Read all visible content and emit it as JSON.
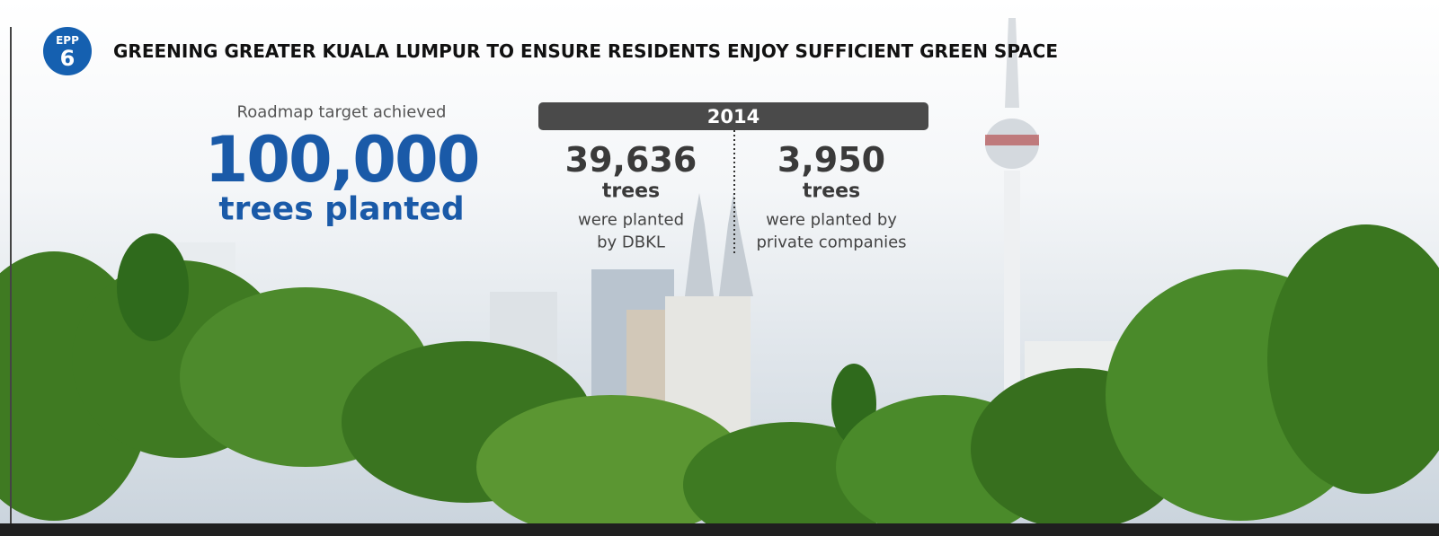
{
  "badge": {
    "label": "EPP",
    "number": "6"
  },
  "header": {
    "title": "GREENING GREATER KUALA LUMPUR TO ENSURE RESIDENTS ENJOY SUFFICIENT GREEN SPACE"
  },
  "target": {
    "caption": "Roadmap target achieved",
    "value": "100,000",
    "unit": "trees planted"
  },
  "year": "2014",
  "stats": [
    {
      "value": "39,636",
      "unit": "trees",
      "lines": [
        "were planted",
        "by DBKL"
      ]
    },
    {
      "value": "3,950",
      "unit": "trees",
      "lines": [
        "were planted by",
        "private companies"
      ]
    }
  ]
}
